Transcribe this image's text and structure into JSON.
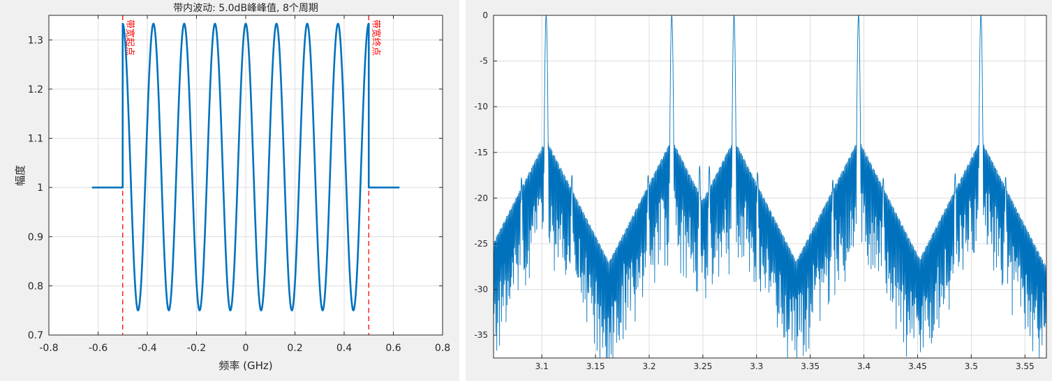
{
  "chart_data": [
    {
      "type": "line",
      "title": "带内波动: 5.0dB峰峰值, 8个周期",
      "xlabel": "频率 (GHz)",
      "ylabel": "幅度",
      "xlim": [
        -0.8,
        0.8
      ],
      "ylim": [
        0.7,
        1.35
      ],
      "xticks": [
        -0.8,
        -0.6,
        -0.4,
        -0.2,
        0,
        0.2,
        0.4,
        0.6,
        0.8
      ],
      "xtick_labels": [
        "-0.8",
        "-0.6",
        "-0.4",
        "-0.2",
        "0",
        "0.2",
        "0.4",
        "0.6",
        "0.8"
      ],
      "yticks": [
        0.7,
        0.8,
        0.9,
        1.0,
        1.1,
        1.2,
        1.3
      ],
      "ytick_labels": [
        "0.7",
        "0.8",
        "0.9",
        "1",
        "1.1",
        "1.2",
        "1.3"
      ],
      "grid": true,
      "series": [
        {
          "color": "#0072bd",
          "x_range": [
            -0.625,
            0.625
          ],
          "passband": [
            -0.5,
            0.5
          ],
          "outside_value": 1.0,
          "ripple_max": 1.333,
          "ripple_min": 0.75,
          "ripple_cycles": 8,
          "ripple_phase_at_start": "max"
        }
      ],
      "markers": [
        {
          "x": -0.5,
          "label": "带宽起点",
          "color": "#ff0000",
          "style": "dashed"
        },
        {
          "x": 0.5,
          "label": "带宽终点",
          "color": "#ff0000",
          "style": "dashed"
        }
      ]
    },
    {
      "type": "line",
      "title": "",
      "xlabel": "",
      "ylabel": "",
      "xlim": [
        3.055,
        3.57
      ],
      "ylim": [
        -37.5,
        0
      ],
      "xticks": [
        3.1,
        3.15,
        3.2,
        3.25,
        3.3,
        3.35,
        3.4,
        3.45,
        3.5,
        3.55
      ],
      "xtick_labels": [
        "3.1",
        "3.15",
        "3.2",
        "3.25",
        "3.3",
        "3.35",
        "3.4",
        "3.45",
        "3.5",
        "3.55"
      ],
      "yticks": [
        0,
        -5,
        -10,
        -15,
        -20,
        -25,
        -30,
        -35
      ],
      "ytick_labels": [
        "0",
        "-5",
        "-10",
        "-15",
        "-20",
        "-25",
        "-30",
        "-35"
      ],
      "grid": true,
      "series": [
        {
          "color": "#0072bd",
          "peaks": [
            {
              "x": 3.104,
              "y": 0
            },
            {
              "x": 3.221,
              "y": 0
            },
            {
              "x": 3.279,
              "y": 0
            },
            {
              "x": 3.395,
              "y": 0
            },
            {
              "x": 3.509,
              "y": 0
            }
          ],
          "sidelobe_spikes": [
            {
              "x": 3.081,
              "y": -17.8
            },
            {
              "x": 3.128,
              "y": -17.5
            },
            {
              "x": 3.199,
              "y": -17.5
            },
            {
              "x": 3.247,
              "y": -16.5
            },
            {
              "x": 3.256,
              "y": -16.5
            },
            {
              "x": 3.301,
              "y": -17.2
            },
            {
              "x": 3.371,
              "y": -18.0
            },
            {
              "x": 3.418,
              "y": -17.8
            },
            {
              "x": 3.485,
              "y": -17.3
            },
            {
              "x": 3.532,
              "y": -17.7
            }
          ],
          "sidelobe_peak": -13.5,
          "floor": -37.5
        }
      ]
    }
  ]
}
